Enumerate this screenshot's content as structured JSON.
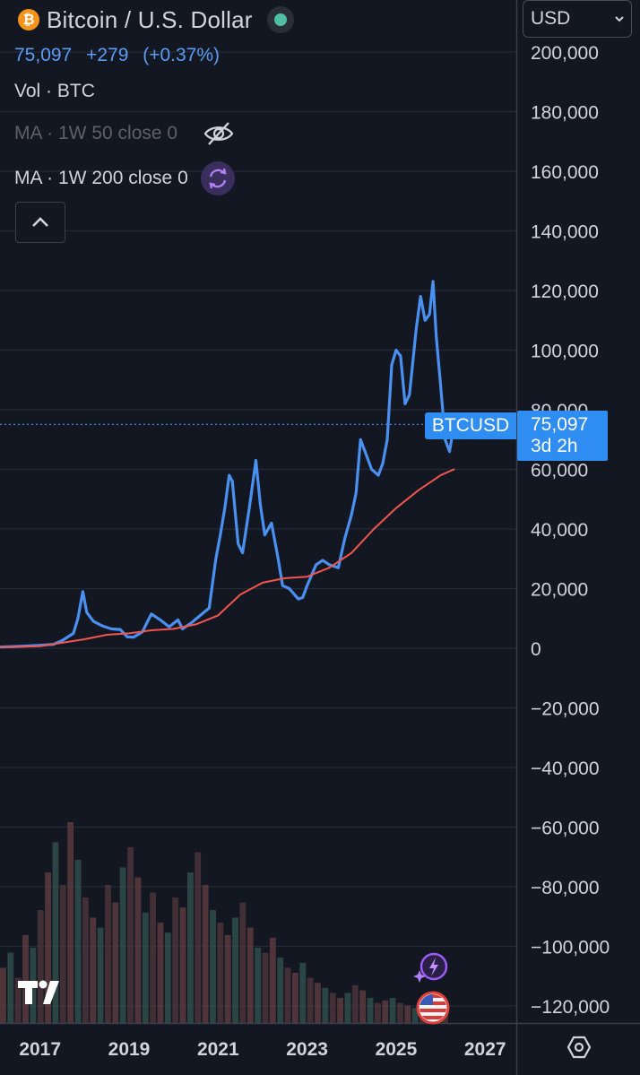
{
  "header": {
    "title": "Bitcoin / U.S. Dollar",
    "price": "75,097",
    "change": "+279",
    "change_pct": "(+0.37%)",
    "currency": "USD"
  },
  "legend": {
    "volume": "Vol · BTC",
    "ma50": "MA · 1W 50 close 0",
    "ma200": "MA · 1W 200 close 0"
  },
  "price_label": {
    "symbol": "BTCUSD",
    "value": "75,097",
    "countdown": "3d 2h"
  },
  "icons": {
    "coin": "bitcoin-icon",
    "live_status": "live-status-dot",
    "hide": "eye-off-icon",
    "sync": "sync-icon",
    "collapse": "chevron-up-icon",
    "dropdown": "chevron-down-icon",
    "logo": "tradingview-logo",
    "ai": "sparkle-lightning-icon",
    "flag": "us-flag-icon",
    "settings": "settings-icon"
  },
  "colors": {
    "background": "#131722",
    "price_line": "#4a90f0",
    "ma200_line": "#f2564f",
    "accent_label": "#2f8cf0",
    "status_dot": "#4fc0a4"
  },
  "chart_data": {
    "type": "line",
    "y_axis_labels": [
      "200,000",
      "180,000",
      "160,000",
      "140,000",
      "120,000",
      "100,000",
      "80,000",
      "60,000",
      "40,000",
      "20,000",
      "0",
      "−20,000",
      "−40,000",
      "−60,000",
      "−80,000",
      "−100,000",
      "−120,000"
    ],
    "x_axis_labels": [
      "2017",
      "2019",
      "2021",
      "2023",
      "2025",
      "2027"
    ],
    "ylim": [
      -120000,
      200000
    ],
    "xlim": [
      2016.1,
      2027.7
    ],
    "grid": true,
    "last_value": 75097,
    "series": [
      {
        "name": "BTCUSD",
        "color": "#4a90f0",
        "x": [
          2016.1,
          2016.5,
          2017.0,
          2017.3,
          2017.5,
          2017.75,
          2017.85,
          2017.96,
          2018.05,
          2018.2,
          2018.4,
          2018.6,
          2018.8,
          2018.96,
          2019.1,
          2019.3,
          2019.5,
          2019.7,
          2019.9,
          2020.1,
          2020.2,
          2020.4,
          2020.6,
          2020.8,
          2020.95,
          2021.05,
          2021.15,
          2021.25,
          2021.32,
          2021.45,
          2021.55,
          2021.7,
          2021.85,
          2021.95,
          2022.05,
          2022.2,
          2022.35,
          2022.45,
          2022.6,
          2022.8,
          2022.9,
          2023.0,
          2023.2,
          2023.35,
          2023.5,
          2023.7,
          2023.85,
          2024.0,
          2024.1,
          2024.2,
          2024.3,
          2024.45,
          2024.6,
          2024.7,
          2024.8,
          2024.9,
          2025.0,
          2025.1,
          2025.2,
          2025.3,
          2025.45,
          2025.55,
          2025.65,
          2025.75,
          2025.83,
          2025.9,
          2026.0,
          2026.1,
          2026.2,
          2026.3
        ],
        "values": [
          400,
          600,
          1000,
          1300,
          2600,
          5000,
          10000,
          19000,
          12000,
          9000,
          7500,
          6500,
          6300,
          3800,
          3700,
          5500,
          11500,
          9500,
          7200,
          9500,
          6500,
          8500,
          11000,
          13500,
          30000,
          38000,
          47000,
          58000,
          56000,
          35000,
          32000,
          47000,
          63000,
          48000,
          38000,
          42000,
          30000,
          21000,
          20000,
          16500,
          17000,
          21000,
          28000,
          29500,
          28000,
          27000,
          37000,
          45000,
          52000,
          70000,
          66000,
          60000,
          58000,
          62000,
          70000,
          95000,
          100000,
          98000,
          82000,
          85000,
          107000,
          118000,
          110000,
          112000,
          123000,
          105000,
          88000,
          70000,
          66000,
          75097
        ]
      },
      {
        "name": "MA 1W 200",
        "color": "#f2564f",
        "x": [
          2016.1,
          2017.0,
          2018.0,
          2018.5,
          2019.0,
          2019.5,
          2020.0,
          2020.5,
          2021.0,
          2021.5,
          2022.0,
          2022.5,
          2023.0,
          2023.5,
          2024.0,
          2024.5,
          2025.0,
          2025.5,
          2026.0,
          2026.3
        ],
        "values": [
          300,
          700,
          3000,
          4500,
          5000,
          6000,
          6500,
          8000,
          11000,
          18000,
          22000,
          23500,
          24000,
          27000,
          32000,
          40000,
          47000,
          53000,
          58000,
          60000
        ]
      }
    ],
    "volume_bars": [
      0.22,
      0.28,
      0.18,
      0.35,
      0.3,
      0.45,
      0.6,
      0.72,
      0.55,
      0.8,
      0.65,
      0.5,
      0.42,
      0.38,
      0.55,
      0.48,
      0.62,
      0.7,
      0.58,
      0.44,
      0.52,
      0.4,
      0.36,
      0.5,
      0.46,
      0.6,
      0.68,
      0.55,
      0.45,
      0.4,
      0.35,
      0.42,
      0.48,
      0.38,
      0.3,
      0.28,
      0.34,
      0.26,
      0.22,
      0.2,
      0.24,
      0.18,
      0.16,
      0.14,
      0.12,
      0.1,
      0.12,
      0.15,
      0.13,
      0.1,
      0.08,
      0.09,
      0.1,
      0.08,
      0.07,
      0.06,
      0.05,
      0.06,
      0.07,
      0.05
    ]
  }
}
